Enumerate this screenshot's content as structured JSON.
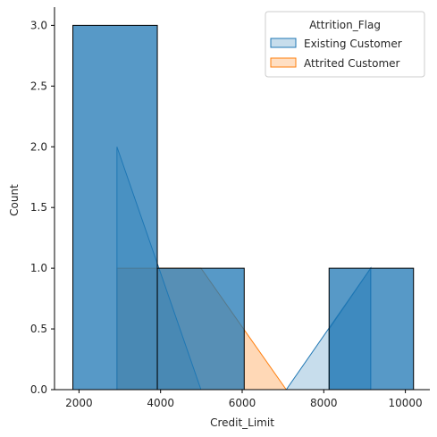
{
  "chart_data": {
    "type": "histogram",
    "title": "",
    "xlabel": "Credit_Limit",
    "ylabel": "Count",
    "xlim": [
      1400,
      10600
    ],
    "ylim": [
      0,
      3.15
    ],
    "xticks": [
      2000,
      4000,
      6000,
      8000,
      10000
    ],
    "xtick_labels": [
      "2000",
      "4000",
      "6000",
      "8000",
      "10000"
    ],
    "yticks": [
      0.0,
      0.5,
      1.0,
      1.5,
      2.0,
      2.5,
      3.0
    ],
    "ytick_labels": [
      "0.0",
      "0.5",
      "1.0",
      "1.5",
      "2.0",
      "2.5",
      "3.0"
    ],
    "grid": false,
    "legend": {
      "title": "Attrition_Flag",
      "position": "top-right",
      "entries": [
        "Existing Customer",
        "Attrited Customer"
      ]
    },
    "series": [
      {
        "name": "Existing Customer",
        "color": "#1f77b4",
        "style": "bars",
        "bins": [
          {
            "x0": 1850,
            "x1": 3920,
            "count": 3
          },
          {
            "x0": 3920,
            "x1": 6050,
            "count": 1
          },
          {
            "x0": 8130,
            "x1": 10200,
            "count": 1
          }
        ]
      },
      {
        "name": "Existing Customer",
        "color": "#1f77b4",
        "style": "poly",
        "points": [
          [
            2930,
            0
          ],
          [
            2930,
            2
          ],
          [
            4990,
            0
          ],
          [
            7080,
            0
          ],
          [
            9150,
            1
          ],
          [
            9150,
            0
          ]
        ]
      },
      {
        "name": "Existing Customer",
        "color": "#1f77b4",
        "style": "poly",
        "points": [
          [
            8130,
            0
          ],
          [
            8130,
            0.5
          ],
          [
            9150,
            1
          ],
          [
            9150,
            0
          ]
        ]
      },
      {
        "name": "Attrited Customer",
        "color": "#ff7f0e",
        "style": "poly",
        "points": [
          [
            2930,
            0
          ],
          [
            2930,
            1
          ],
          [
            4990,
            1
          ],
          [
            7080,
            0
          ]
        ]
      }
    ]
  }
}
